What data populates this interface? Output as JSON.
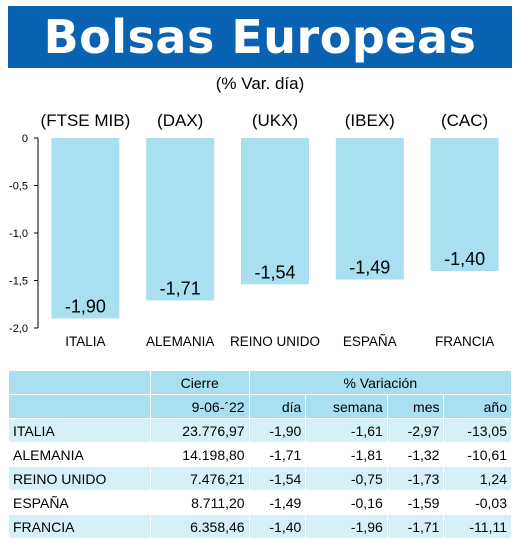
{
  "header": {
    "title": "Bolsas Europeas",
    "subtitle": "(% Var. día)"
  },
  "colors": {
    "title_bg": "#0a62b2",
    "bar_fill": "#a8e0f2",
    "table_header": "#a8e0f2",
    "table_row_alt": "#d6f0f8"
  },
  "chart_data": {
    "type": "bar",
    "title": "Bolsas Europeas",
    "subtitle": "(% Var. día)",
    "index_codes": [
      "(FTSE MIB)",
      "(DAX)",
      "(UKX)",
      "(IBEX)",
      "(CAC)"
    ],
    "categories": [
      "ITALIA",
      "ALEMANIA",
      "REINO UNIDO",
      "ESPAÑA",
      "FRANCIA"
    ],
    "values": [
      -1.9,
      -1.71,
      -1.54,
      -1.49,
      -1.4
    ],
    "value_labels": [
      "-1,90",
      "-1,71",
      "-1,54",
      "-1,49",
      "-1,40"
    ],
    "yticks": [
      0,
      -0.5,
      -1.0,
      -1.5,
      -2.0
    ],
    "ytick_labels": [
      "0",
      "-0,5",
      "-1,0",
      "-1,5",
      "-2,0"
    ],
    "ylim": [
      -2.0,
      0
    ],
    "grid": false
  },
  "table": {
    "group_headers": {
      "cierre": "Cierre",
      "variacion": "% Variación"
    },
    "sub_headers": {
      "date": "9-06-´22",
      "dia": "día",
      "semana": "semana",
      "mes": "mes",
      "ano": "año"
    },
    "rows": [
      {
        "country": "ITALIA",
        "cierre": "23.776,97",
        "dia": "-1,90",
        "semana": "-1,61",
        "mes": "-2,97",
        "ano": "-13,05"
      },
      {
        "country": "ALEMANIA",
        "cierre": "14.198,80",
        "dia": "-1,71",
        "semana": "-1,81",
        "mes": "-1,32",
        "ano": "-10,61"
      },
      {
        "country": "REINO UNIDO",
        "cierre": "7.476,21",
        "dia": "-1,54",
        "semana": "-0,75",
        "mes": "-1,73",
        "ano": "1,24"
      },
      {
        "country": "ESPAÑA",
        "cierre": "8.711,20",
        "dia": "-1,49",
        "semana": "-0,16",
        "mes": "-1,59",
        "ano": "-0,03"
      },
      {
        "country": "FRANCIA",
        "cierre": "6.358,46",
        "dia": "-1,40",
        "semana": "-1,96",
        "mes": "-1,71",
        "ano": "-11,11"
      }
    ]
  }
}
